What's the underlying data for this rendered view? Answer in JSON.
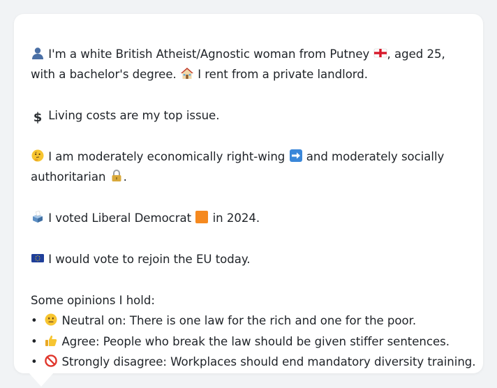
{
  "profile": {
    "line1": {
      "a": "I'm a white British Atheist/Agnostic woman from Putney",
      "b": ", aged 25,"
    },
    "line2": {
      "a": "with a bachelor's degree.",
      "b": "I rent from a private landlord."
    },
    "line3": "Living costs are my top issue.",
    "line4": {
      "a": "I am moderately economically right-wing",
      "b": "and moderately socially"
    },
    "line5": "authoritarian",
    "line5_period": ".",
    "line6": {
      "a": "I voted Liberal Democrat",
      "b": "in 2024."
    },
    "line7": "I would vote to rejoin the EU today."
  },
  "opinions": {
    "heading": "Some opinions I hold:",
    "bullet": "•",
    "items": [
      {
        "text": "Neutral on: There is one law for the rich and one for the poor.",
        "icon": "neutral-face-icon"
      },
      {
        "text": "Agree: People who break the law should be given stiffer sentences.",
        "icon": "thumbs-up-icon"
      },
      {
        "text": "Strongly disagree: Workplaces should end mandatory diversity training.",
        "icon": "no-entry-icon"
      }
    ]
  },
  "colors": {
    "background": "#f1f3f5",
    "card": "#ffffff",
    "text": "#1f2328"
  }
}
